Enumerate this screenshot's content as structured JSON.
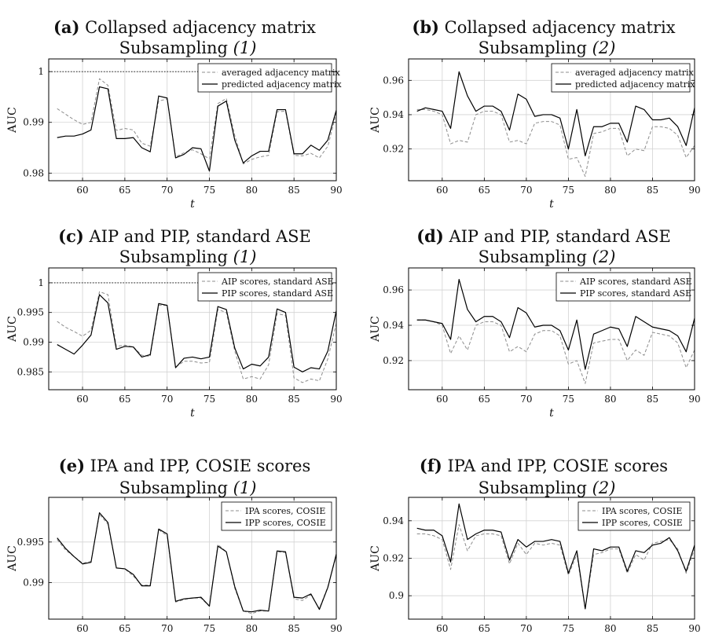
{
  "panels": [
    {
      "label": "(a)",
      "title": "Collapsed adjacency matrix",
      "subtitle": "Subsampling",
      "subtitle_num": "(1)",
      "chart_data": {
        "type": "line",
        "xlabel": "t",
        "ylabel": "AUC",
        "xlim": [
          56,
          90
        ],
        "ylim": [
          0.9785,
          1.0025
        ],
        "xticks": [
          60,
          65,
          70,
          75,
          80,
          85,
          90
        ],
        "yticks": [
          0.98,
          0.99,
          1
        ],
        "ytick_labels": [
          "0.98",
          "0.99",
          "1"
        ],
        "grid": true,
        "legend_position": "top-right",
        "reference_line": 1,
        "x": [
          57,
          58,
          59,
          60,
          61,
          62,
          63,
          64,
          65,
          66,
          67,
          68,
          69,
          70,
          71,
          72,
          73,
          74,
          75,
          76,
          77,
          78,
          79,
          80,
          81,
          82,
          83,
          84,
          85,
          86,
          87,
          88,
          89,
          90
        ],
        "series": [
          {
            "name": "averaged adjacency matrix",
            "dash": true,
            "color": "#8c8c8c",
            "values": [
              0.9927,
              0.9916,
              0.9905,
              0.9896,
              0.99,
              0.9986,
              0.9973,
              0.9884,
              0.9888,
              0.9885,
              0.9859,
              0.9853,
              0.9942,
              0.9946,
              0.9832,
              0.984,
              0.9846,
              0.9838,
              0.9828,
              0.9937,
              0.9947,
              0.9874,
              0.9818,
              0.9827,
              0.9832,
              0.9835,
              0.9921,
              0.9922,
              0.9835,
              0.9834,
              0.9839,
              0.983,
              0.9853,
              0.9918
            ]
          },
          {
            "name": "predicted adjacency matrix",
            "dash": false,
            "color": "#000000",
            "values": [
              0.987,
              0.9873,
              0.9873,
              0.9877,
              0.9885,
              0.997,
              0.9966,
              0.9868,
              0.9868,
              0.987,
              0.985,
              0.9842,
              0.9952,
              0.9948,
              0.983,
              0.9837,
              0.985,
              0.9848,
              0.9804,
              0.9932,
              0.9942,
              0.9865,
              0.982,
              0.9834,
              0.9843,
              0.9843,
              0.9925,
              0.9925,
              0.9838,
              0.9838,
              0.9855,
              0.9845,
              0.9865,
              0.9924
            ]
          }
        ]
      }
    },
    {
      "label": "(b)",
      "title": "Collapsed adjacency matrix",
      "subtitle": "Subsampling",
      "subtitle_num": "(2)",
      "chart_data": {
        "type": "line",
        "xlabel": "t",
        "ylabel": "AUC",
        "xlim": [
          56,
          90
        ],
        "ylim": [
          0.9015,
          0.9725
        ],
        "xticks": [
          60,
          65,
          70,
          75,
          80,
          85,
          90
        ],
        "yticks": [
          0.92,
          0.94,
          0.96
        ],
        "ytick_labels": [
          "0.92",
          "0.94",
          "0.96"
        ],
        "grid": true,
        "legend_position": "top-right",
        "reference_line": null,
        "x": [
          57,
          58,
          59,
          60,
          61,
          62,
          63,
          64,
          65,
          66,
          67,
          68,
          69,
          70,
          71,
          72,
          73,
          74,
          75,
          76,
          77,
          78,
          79,
          80,
          81,
          82,
          83,
          84,
          85,
          86,
          87,
          88,
          89,
          90
        ],
        "series": [
          {
            "name": "averaged adjacency matrix",
            "dash": true,
            "color": "#8c8c8c",
            "values": [
              0.943,
              0.943,
              0.942,
              0.94,
              0.923,
              0.925,
              0.924,
              0.94,
              0.942,
              0.942,
              0.94,
              0.924,
              0.925,
              0.923,
              0.935,
              0.936,
              0.936,
              0.934,
              0.914,
              0.915,
              0.904,
              0.929,
              0.93,
              0.932,
              0.932,
              0.916,
              0.92,
              0.919,
              0.933,
              0.933,
              0.932,
              0.928,
              0.915,
              0.922
            ]
          },
          {
            "name": "predicted adjacency matrix",
            "dash": false,
            "color": "#000000",
            "values": [
              0.942,
              0.944,
              0.943,
              0.942,
              0.932,
              0.965,
              0.951,
              0.942,
              0.945,
              0.945,
              0.942,
              0.931,
              0.952,
              0.949,
              0.939,
              0.94,
              0.94,
              0.938,
              0.92,
              0.943,
              0.916,
              0.933,
              0.933,
              0.935,
              0.935,
              0.924,
              0.945,
              0.943,
              0.937,
              0.937,
              0.938,
              0.933,
              0.922,
              0.944
            ]
          }
        ]
      }
    },
    {
      "label": "(c)",
      "title": "AIP and PIP, standard ASE",
      "subtitle": "Subsampling",
      "subtitle_num": "(1)",
      "chart_data": {
        "type": "line",
        "xlabel": "t",
        "ylabel": "AUC",
        "xlim": [
          56,
          90
        ],
        "ylim": [
          0.982,
          1.0025
        ],
        "xticks": [
          60,
          65,
          70,
          75,
          80,
          85,
          90
        ],
        "yticks": [
          0.985,
          0.99,
          0.995,
          1
        ],
        "ytick_labels": [
          "0.985",
          "0.99",
          "0.995",
          "1"
        ],
        "grid": true,
        "legend_position": "top-right",
        "reference_line": 1,
        "x": [
          57,
          58,
          59,
          60,
          61,
          62,
          63,
          64,
          65,
          66,
          67,
          68,
          69,
          70,
          71,
          72,
          73,
          74,
          75,
          76,
          77,
          78,
          79,
          80,
          81,
          82,
          83,
          84,
          85,
          86,
          87,
          88,
          89,
          90
        ],
        "series": [
          {
            "name": "AIP scores, standard ASE",
            "dash": true,
            "color": "#8c8c8c",
            "values": [
              0.9935,
              0.9925,
              0.9918,
              0.991,
              0.992,
              0.9985,
              0.998,
              0.9893,
              0.9895,
              0.9892,
              0.9878,
              0.9876,
              0.9962,
              0.9962,
              0.9858,
              0.9868,
              0.9868,
              0.9865,
              0.9866,
              0.9955,
              0.995,
              0.9885,
              0.9838,
              0.9842,
              0.9838,
              0.9862,
              0.9948,
              0.9945,
              0.984,
              0.9832,
              0.9838,
              0.9835,
              0.9872,
              0.9932
            ]
          },
          {
            "name": "PIP scores, standard ASE",
            "dash": false,
            "color": "#000000",
            "values": [
              0.9896,
              0.9888,
              0.988,
              0.9895,
              0.9912,
              0.998,
              0.9966,
              0.9888,
              0.9893,
              0.9892,
              0.9875,
              0.9879,
              0.9965,
              0.9962,
              0.9857,
              0.9873,
              0.9875,
              0.9872,
              0.9875,
              0.996,
              0.9955,
              0.989,
              0.9855,
              0.9863,
              0.986,
              0.9875,
              0.9956,
              0.995,
              0.9858,
              0.985,
              0.9857,
              0.9855,
              0.9885,
              0.9953
            ]
          }
        ]
      }
    },
    {
      "label": "(d)",
      "title": "AIP and PIP, standard ASE",
      "subtitle": "Subsampling",
      "subtitle_num": "(2)",
      "chart_data": {
        "type": "line",
        "xlabel": "t",
        "ylabel": "AUC",
        "xlim": [
          56,
          90
        ],
        "ylim": [
          0.9035,
          0.9725
        ],
        "xticks": [
          60,
          65,
          70,
          75,
          80,
          85,
          90
        ],
        "yticks": [
          0.92,
          0.94,
          0.96
        ],
        "ytick_labels": [
          "0.92",
          "0.94",
          "0.96"
        ],
        "grid": true,
        "legend_position": "top-right",
        "reference_line": null,
        "x": [
          57,
          58,
          59,
          60,
          61,
          62,
          63,
          64,
          65,
          66,
          67,
          68,
          69,
          70,
          71,
          72,
          73,
          74,
          75,
          76,
          77,
          78,
          79,
          80,
          81,
          82,
          83,
          84,
          85,
          86,
          87,
          88,
          89,
          90
        ],
        "series": [
          {
            "name": "AIP scores, standard ASE",
            "dash": true,
            "color": "#8c8c8c",
            "values": [
              0.943,
              0.943,
              0.942,
              0.94,
              0.924,
              0.934,
              0.926,
              0.94,
              0.942,
              0.942,
              0.94,
              0.925,
              0.928,
              0.925,
              0.935,
              0.937,
              0.937,
              0.934,
              0.918,
              0.92,
              0.907,
              0.93,
              0.931,
              0.932,
              0.932,
              0.92,
              0.926,
              0.923,
              0.936,
              0.935,
              0.934,
              0.93,
              0.916,
              0.926
            ]
          },
          {
            "name": "PIP scores, standard ASE",
            "dash": false,
            "color": "#000000",
            "values": [
              0.943,
              0.943,
              0.942,
              0.941,
              0.932,
              0.966,
              0.949,
              0.942,
              0.945,
              0.945,
              0.942,
              0.933,
              0.95,
              0.947,
              0.939,
              0.94,
              0.94,
              0.937,
              0.926,
              0.943,
              0.915,
              0.935,
              0.937,
              0.939,
              0.938,
              0.928,
              0.945,
              0.942,
              0.939,
              0.938,
              0.937,
              0.934,
              0.925,
              0.944
            ]
          }
        ]
      }
    },
    {
      "label": "(e)",
      "title": "IPA and IPP, COSIE scores",
      "subtitle": "Subsampling",
      "subtitle_num": "(1)",
      "chart_data": {
        "type": "line",
        "xlabel": "t",
        "ylabel": "AUC",
        "xlim": [
          56,
          90
        ],
        "ylim": [
          0.9855,
          1.0005
        ],
        "xticks": [
          60,
          65,
          70,
          75,
          80,
          85,
          90
        ],
        "yticks": [
          0.99,
          0.995
        ],
        "ytick_labels": [
          "0.99",
          "0.995"
        ],
        "grid": true,
        "legend_position": "top-right",
        "reference_line": null,
        "x": [
          57,
          58,
          59,
          60,
          61,
          62,
          63,
          64,
          65,
          66,
          67,
          68,
          69,
          70,
          71,
          72,
          73,
          74,
          75,
          76,
          77,
          78,
          79,
          80,
          81,
          82,
          83,
          84,
          85,
          86,
          87,
          88,
          89,
          90
        ],
        "series": [
          {
            "name": "IPA scores, COSIE",
            "dash": true,
            "color": "#8c8c8c",
            "values": [
              0.9953,
              0.994,
              0.9932,
              0.9924,
              0.9926,
              0.9984,
              0.9972,
              0.9918,
              0.9917,
              0.9908,
              0.9897,
              0.9897,
              0.9965,
              0.9958,
              0.9876,
              0.9879,
              0.9881,
              0.9881,
              0.9871,
              0.9947,
              0.9938,
              0.9893,
              0.9865,
              0.9862,
              0.9865,
              0.9865,
              0.9938,
              0.9937,
              0.988,
              0.9878,
              0.9885,
              0.9868,
              0.9895,
              0.9933
            ]
          },
          {
            "name": "IPP scores, COSIE",
            "dash": false,
            "color": "#000000",
            "values": [
              0.9955,
              0.9942,
              0.9932,
              0.9923,
              0.9925,
              0.9986,
              0.9974,
              0.9918,
              0.9917,
              0.991,
              0.9896,
              0.9896,
              0.9966,
              0.996,
              0.9877,
              0.988,
              0.9881,
              0.9882,
              0.9871,
              0.9945,
              0.9938,
              0.9895,
              0.9865,
              0.9864,
              0.9866,
              0.9865,
              0.9939,
              0.9938,
              0.9882,
              0.9881,
              0.9886,
              0.9867,
              0.9894,
              0.9935
            ]
          }
        ]
      }
    },
    {
      "label": "(f)",
      "title": "IPA and IPP, COSIE scores",
      "subtitle": "Subsampling",
      "subtitle_num": "(2)",
      "chart_data": {
        "type": "line",
        "xlabel": "t",
        "ylabel": "AUC",
        "xlim": [
          56,
          90
        ],
        "ylim": [
          0.8875,
          0.9525
        ],
        "xticks": [
          60,
          65,
          70,
          75,
          80,
          85,
          90
        ],
        "yticks": [
          0.9,
          0.92,
          0.94
        ],
        "ytick_labels": [
          "0.9",
          "0.92",
          "0.94"
        ],
        "grid": true,
        "legend_position": "top-right",
        "reference_line": null,
        "x": [
          57,
          58,
          59,
          60,
          61,
          62,
          63,
          64,
          65,
          66,
          67,
          68,
          69,
          70,
          71,
          72,
          73,
          74,
          75,
          76,
          77,
          78,
          79,
          80,
          81,
          82,
          83,
          84,
          85,
          86,
          87,
          88,
          89,
          90
        ],
        "series": [
          {
            "name": "IPA scores, COSIE",
            "dash": true,
            "color": "#8c8c8c",
            "values": [
              0.933,
              0.933,
              0.932,
              0.93,
              0.914,
              0.938,
              0.924,
              0.932,
              0.933,
              0.933,
              0.932,
              0.917,
              0.928,
              0.922,
              0.928,
              0.927,
              0.928,
              0.927,
              0.911,
              0.922,
              0.893,
              0.922,
              0.923,
              0.925,
              0.925,
              0.912,
              0.922,
              0.919,
              0.928,
              0.929,
              0.93,
              0.925,
              0.912,
              0.925
            ]
          },
          {
            "name": "IPP scores, COSIE",
            "dash": false,
            "color": "#000000",
            "values": [
              0.936,
              0.935,
              0.935,
              0.932,
              0.918,
              0.949,
              0.93,
              0.933,
              0.935,
              0.935,
              0.934,
              0.919,
              0.93,
              0.926,
              0.929,
              0.929,
              0.93,
              0.929,
              0.912,
              0.924,
              0.893,
              0.925,
              0.924,
              0.926,
              0.926,
              0.913,
              0.924,
              0.923,
              0.927,
              0.928,
              0.931,
              0.924,
              0.913,
              0.927
            ]
          }
        ]
      }
    }
  ]
}
